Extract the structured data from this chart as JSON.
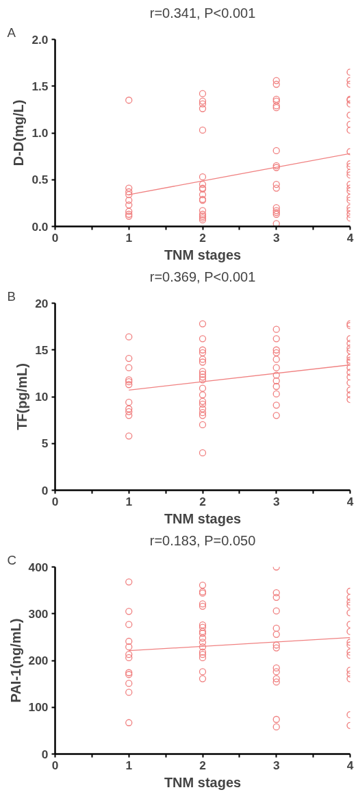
{
  "chart_data": [
    {
      "type": "scatter",
      "title": "r=0.341, P<0.001",
      "xlabel": "TNM stages",
      "ylabel": "D-D(mg/L)",
      "annotations": [
        "A"
      ],
      "grid": false,
      "marker": "circle",
      "xlim": [
        0,
        4
      ],
      "xticks": [
        0,
        {
          "value": 0.5,
          "label": null
        },
        1,
        {
          "value": 1.5,
          "label": null
        },
        2,
        {
          "value": 2.5,
          "label": null
        },
        3,
        {
          "value": 3.5,
          "label": null
        },
        4
      ],
      "ylim": [
        0,
        2
      ],
      "yticks": [
        {
          "value": 0,
          "label": "0.0"
        },
        0.5,
        {
          "value": 1,
          "label": "1.0"
        },
        1.5,
        {
          "value": 2,
          "label": "2.0"
        }
      ],
      "series": [
        {
          "color": "#f08080",
          "x": [
            1,
            1,
            1,
            1,
            1,
            1,
            1,
            1,
            1,
            2,
            2,
            2,
            2,
            2,
            2,
            2,
            2,
            2,
            2,
            2,
            2,
            2,
            2,
            2,
            2,
            2,
            3,
            3,
            3,
            3,
            3,
            3,
            3,
            3,
            3,
            3,
            3,
            3,
            3,
            3,
            3,
            3,
            4,
            4,
            4,
            4,
            4,
            4,
            4,
            4,
            4,
            4,
            4,
            4,
            4,
            4,
            4,
            4,
            4,
            4,
            4,
            4,
            4,
            4,
            4
          ],
          "values": [
            1.35,
            0.41,
            0.37,
            0.34,
            0.28,
            0.23,
            0.16,
            0.13,
            0.11,
            1.42,
            1.34,
            1.31,
            1.26,
            1.03,
            0.53,
            0.45,
            0.41,
            0.4,
            0.34,
            0.29,
            0.28,
            0.17,
            0.13,
            0.11,
            0.09,
            0.07,
            1.56,
            1.52,
            1.36,
            1.34,
            1.29,
            1.27,
            0.81,
            0.65,
            0.63,
            0.45,
            0.41,
            0.2,
            0.17,
            0.15,
            0.13,
            0.03,
            1.65,
            1.56,
            1.52,
            1.36,
            1.35,
            1.31,
            1.19,
            1.09,
            1.03,
            0.8,
            0.67,
            0.64,
            0.58,
            0.55,
            0.45,
            0.41,
            0.38,
            0.31,
            0.28,
            0.2,
            0.17,
            0.13,
            0.09
          ]
        },
        {
          "type": "line",
          "color": "#f08080",
          "marker": "none",
          "x": [
            1,
            4
          ],
          "values": [
            0.34,
            0.78
          ]
        }
      ]
    },
    {
      "type": "scatter",
      "title": "r=0.369, P<0.001",
      "xlabel": "TNM stages",
      "ylabel": "TF(pg/mL)",
      "annotations": [
        "B"
      ],
      "grid": false,
      "marker": "circle",
      "xlim": [
        0,
        4
      ],
      "xticks": [
        0,
        {
          "value": 0.5,
          "label": null
        },
        1,
        {
          "value": 1.5,
          "label": null
        },
        2,
        {
          "value": 2.5,
          "label": null
        },
        3,
        {
          "value": 3.5,
          "label": null
        },
        4
      ],
      "ylim": [
        0,
        20
      ],
      "yticks": [
        0,
        5,
        10,
        15,
        20
      ],
      "series": [
        {
          "color": "#f08080",
          "x": [
            1,
            1,
            1,
            1,
            1,
            1,
            1,
            1,
            1,
            1,
            1,
            2,
            2,
            2,
            2,
            2,
            2,
            2,
            2,
            2,
            2,
            2,
            2,
            2,
            2,
            2,
            2,
            2,
            2,
            2,
            3,
            3,
            3,
            3,
            3,
            3,
            3,
            3,
            3,
            3,
            3,
            3,
            4,
            4,
            4,
            4,
            4,
            4,
            4,
            4,
            4,
            4,
            4,
            4,
            4,
            4,
            4,
            4
          ],
          "values": [
            16.4,
            14.1,
            13.1,
            11.8,
            11.6,
            11.3,
            9.4,
            8.7,
            8.4,
            8.0,
            5.8,
            17.8,
            16.2,
            15.0,
            14.7,
            14.0,
            13.7,
            12.7,
            12.4,
            12.1,
            11.8,
            10.9,
            10.2,
            9.5,
            9.2,
            8.7,
            8.3,
            8.0,
            7.0,
            4.0,
            17.2,
            16.2,
            15.0,
            14.7,
            14.0,
            13.1,
            12.3,
            11.7,
            11.1,
            10.3,
            9.1,
            8.0,
            17.8,
            17.6,
            16.2,
            15.7,
            15.2,
            14.9,
            14.2,
            13.9,
            13.7,
            13.1,
            12.6,
            12.1,
            11.5,
            10.7,
            10.2,
            9.7
          ]
        },
        {
          "type": "line",
          "color": "#f08080",
          "marker": "none",
          "x": [
            1,
            4
          ],
          "values": [
            10.7,
            13.4
          ]
        }
      ]
    },
    {
      "type": "scatter",
      "title": "r=0.183, P=0.050",
      "xlabel": "TNM stages",
      "ylabel": "PAI-1(ng/mL)",
      "annotations": [
        "C"
      ],
      "grid": false,
      "marker": "circle",
      "xlim": [
        0,
        4
      ],
      "xticks": [
        0,
        {
          "value": 0.5,
          "label": null
        },
        1,
        {
          "value": 1.5,
          "label": null
        },
        2,
        {
          "value": 2.5,
          "label": null
        },
        3,
        {
          "value": 3.5,
          "label": null
        },
        4
      ],
      "ylim": [
        0,
        400
      ],
      "yticks": [
        0,
        100,
        200,
        300,
        400
      ],
      "series": [
        {
          "color": "#f08080",
          "x": [
            1,
            1,
            1,
            1,
            1,
            1,
            1,
            1,
            1,
            1,
            1,
            1,
            2,
            2,
            2,
            2,
            2,
            2,
            2,
            2,
            2,
            2,
            2,
            2,
            2,
            2,
            2,
            2,
            2,
            3,
            3,
            3,
            3,
            3,
            3,
            3,
            3,
            3,
            3,
            3,
            3,
            3,
            3,
            4,
            4,
            4,
            4,
            4,
            4,
            4,
            4,
            4,
            4,
            4,
            4,
            4,
            4,
            4,
            4
          ],
          "values": [
            368,
            305,
            277,
            241,
            229,
            213,
            206,
            174,
            170,
            151,
            132,
            67,
            361,
            347,
            344,
            321,
            316,
            276,
            271,
            262,
            258,
            248,
            239,
            229,
            218,
            213,
            206,
            176,
            161,
            400,
            345,
            335,
            306,
            269,
            256,
            233,
            227,
            184,
            176,
            161,
            154,
            74,
            58,
            348,
            335,
            325,
            318,
            302,
            277,
            262,
            239,
            233,
            218,
            211,
            179,
            171,
            161,
            84,
            61
          ]
        },
        {
          "type": "line",
          "color": "#f08080",
          "marker": "none",
          "x": [
            1,
            4
          ],
          "values": [
            221,
            249
          ]
        }
      ]
    }
  ]
}
